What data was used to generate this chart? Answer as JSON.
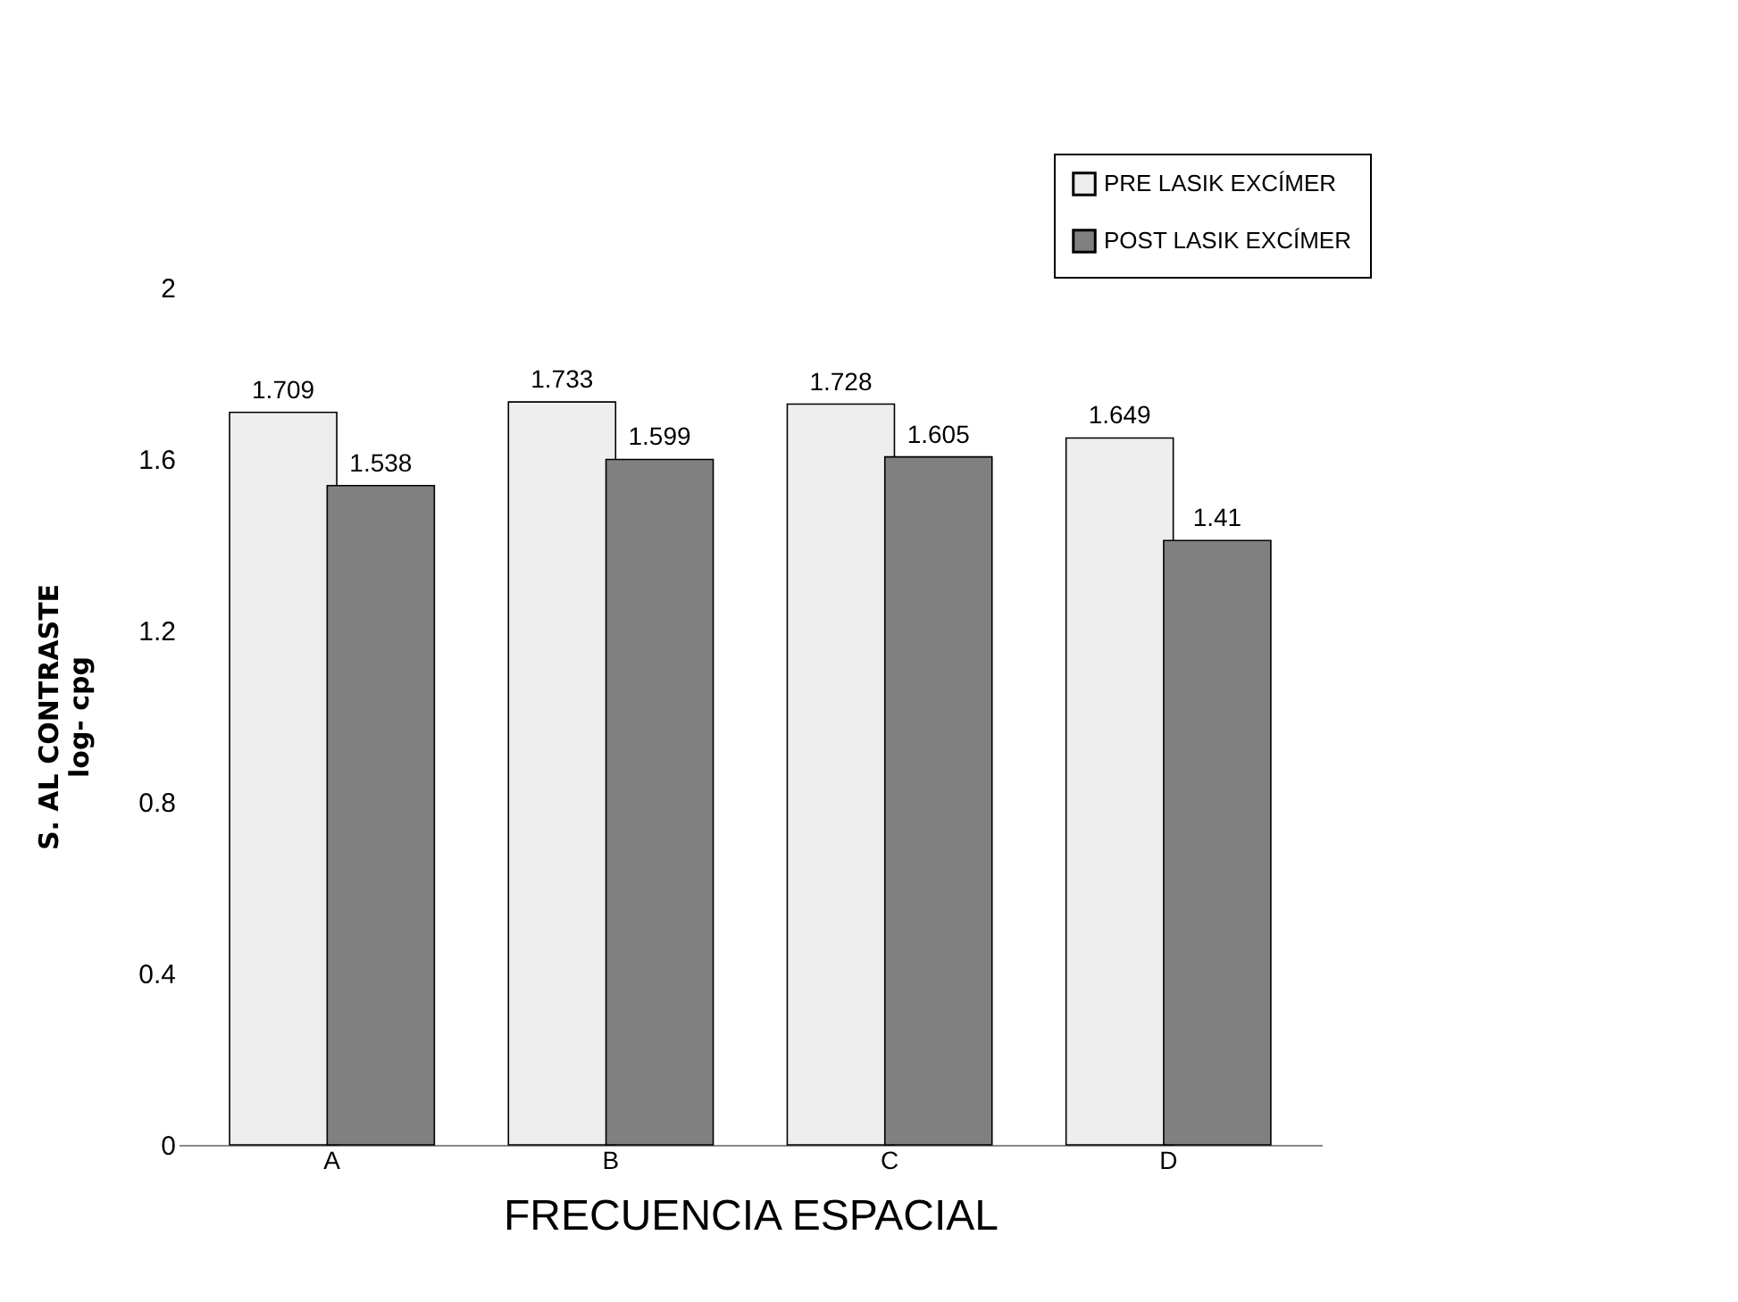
{
  "chart_data": {
    "type": "bar",
    "xlabel": "FRECUENCIA ESPACIAL",
    "ylabel": "S. AL CONTRASTE\nlog- cpg",
    "categories": [
      "A",
      "B",
      "C",
      "D"
    ],
    "series": [
      {
        "name": "PRE LASIK EXCÍMER",
        "color": "#eeeeee",
        "values": [
          1.709,
          1.733,
          1.728,
          1.649
        ]
      },
      {
        "name": "POST LASIK EXCÍMER",
        "color": "#808080",
        "values": [
          1.538,
          1.599,
          1.605,
          1.41
        ]
      }
    ],
    "ylim": [
      0,
      2
    ],
    "yticks": [
      0,
      0.4,
      0.8,
      1.2,
      1.6,
      2
    ],
    "grid": false,
    "legend": "top right",
    "data_labels": true
  }
}
